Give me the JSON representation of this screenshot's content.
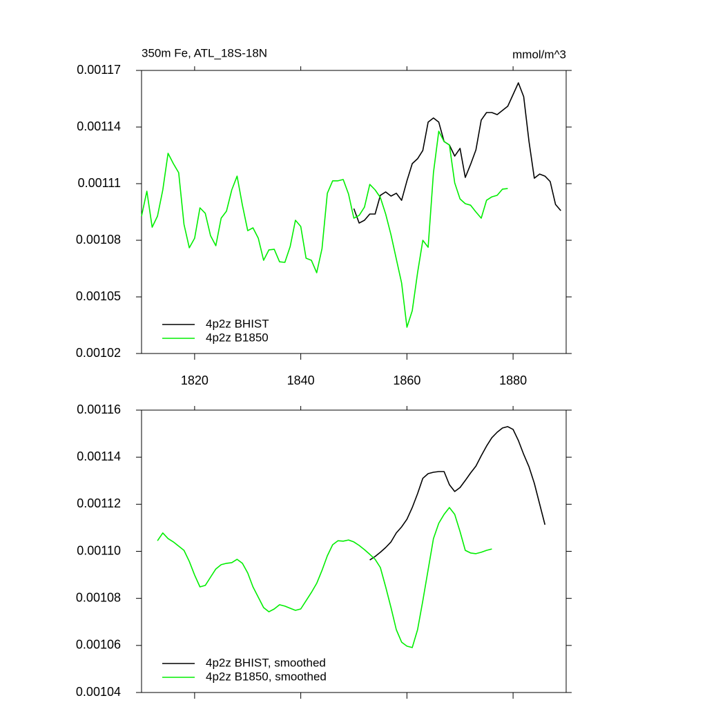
{
  "chart_data": [
    {
      "type": "line",
      "title": "350m Fe, ATL_18S-18N",
      "units_label": "mmol/m^3",
      "xlim": [
        1810,
        1890
      ],
      "xticks": [
        1820,
        1840,
        1860,
        1880
      ],
      "show_xtick_labels": true,
      "ylim": [
        0.00102,
        0.00117
      ],
      "yticks": [
        0.00102,
        0.00105,
        0.00108,
        0.00111,
        0.00114,
        0.00117
      ],
      "series": [
        {
          "name": "4p2z BHIST",
          "color": "#000000",
          "x": [
            1850,
            1851,
            1852,
            1853,
            1854,
            1855,
            1856,
            1857,
            1858,
            1859,
            1860,
            1861,
            1862,
            1863,
            1864,
            1865,
            1866,
            1867,
            1868,
            1869,
            1870,
            1871,
            1872,
            1873,
            1874,
            1875,
            1876,
            1877,
            1878,
            1879,
            1880,
            1881,
            1882,
            1883,
            1884,
            1885,
            1886,
            1887,
            1888,
            1889
          ],
          "values": [
            0.0010968,
            0.0010891,
            0.0010906,
            0.0010939,
            0.0010939,
            0.0011038,
            0.0011056,
            0.0011034,
            0.0011049,
            0.0011012,
            0.0011115,
            0.0011206,
            0.0011232,
            0.0011276,
            0.0011426,
            0.0011448,
            0.0011426,
            0.0011323,
            0.0011305,
            0.0011246,
            0.0011287,
            0.0011133,
            0.0011202,
            0.0011279,
            0.0011437,
            0.0011477,
            0.0011477,
            0.0011466,
            0.0011488,
            0.001151,
            0.0011572,
            0.0011634,
            0.0011561,
            0.0011323,
            0.0011129,
            0.0011151,
            0.001114,
            0.0011111,
            0.001099,
            0.0010957
          ]
        },
        {
          "name": "4p2z B1850",
          "color": "#00ee00",
          "x": [
            1810,
            1811,
            1812,
            1813,
            1814,
            1815,
            1816,
            1817,
            1818,
            1819,
            1820,
            1821,
            1822,
            1823,
            1824,
            1825,
            1826,
            1827,
            1828,
            1829,
            1830,
            1831,
            1832,
            1833,
            1834,
            1835,
            1836,
            1837,
            1838,
            1839,
            1840,
            1841,
            1842,
            1843,
            1844,
            1845,
            1846,
            1847,
            1848,
            1849,
            1850,
            1851,
            1852,
            1853,
            1854,
            1855,
            1856,
            1857,
            1858,
            1859,
            1860,
            1861,
            1862,
            1863,
            1864,
            1865,
            1866,
            1867,
            1868,
            1869,
            1870,
            1871,
            1872,
            1873,
            1874,
            1875,
            1876,
            1877,
            1878,
            1879
          ],
          "values": [
            0.0010928,
            0.001106,
            0.0010869,
            0.0010928,
            0.0011067,
            0.0011261,
            0.0011206,
            0.0011158,
            0.0010884,
            0.001076,
            0.0010811,
            0.0010972,
            0.0010943,
            0.0010825,
            0.0010771,
            0.0010917,
            0.0010954,
            0.0011067,
            0.001114,
            0.0010986,
            0.0010851,
            0.0010866,
            0.0010811,
            0.0010694,
            0.0010749,
            0.0010752,
            0.0010686,
            0.0010683,
            0.0010767,
            0.0010906,
            0.0010873,
            0.0010705,
            0.0010694,
            0.0010628,
            0.0010756,
            0.0011049,
            0.0011115,
            0.0011115,
            0.0011122,
            0.0011045,
            0.0010917,
            0.0010932,
            0.0010976,
            0.0011096,
            0.0011067,
            0.0011027,
            0.0010939,
            0.0010829,
            0.0010701,
            0.0010573,
            0.0010339,
            0.0010427,
            0.0010628,
            0.00108,
            0.0010763,
            0.0011158,
            0.0011378,
            0.0011323,
            0.0011305,
            0.0011104,
            0.0011019,
            0.0010994,
            0.0010986,
            0.001095,
            0.0010917,
            0.0011012,
            0.001103,
            0.0011038,
            0.0011071,
            0.0011074
          ]
        }
      ]
    },
    {
      "type": "line",
      "xlim": [
        1810,
        1890
      ],
      "xticks": [
        1820,
        1840,
        1860,
        1880
      ],
      "show_xtick_labels": false,
      "ylim": [
        0.00104,
        0.00116
      ],
      "yticks": [
        0.00104,
        0.00106,
        0.00108,
        {
          "value": 0.0011,
          "label": "0.00110"
        },
        0.00112,
        0.00114,
        0.00116
      ],
      "series": [
        {
          "name": "4p2z BHIST, smoothed",
          "color": "#000000",
          "x": [
            1853,
            1854,
            1855,
            1856,
            1857,
            1858,
            1859,
            1860,
            1861,
            1862,
            1863,
            1864,
            1865,
            1866,
            1867,
            1868,
            1869,
            1870,
            1871,
            1872,
            1873,
            1874,
            1875,
            1876,
            1877,
            1878,
            1879,
            1880,
            1881,
            1882,
            1883,
            1884,
            1885,
            1886
          ],
          "values": [
            0.0010963,
            0.0010978,
            0.0010996,
            0.0011016,
            0.001104,
            0.0011078,
            0.0011104,
            0.0011136,
            0.0011186,
            0.0011245,
            0.001131,
            0.001133,
            0.0011336,
            0.0011339,
            0.0011339,
            0.0011283,
            0.0011254,
            0.0011271,
            0.0011301,
            0.0011333,
            0.0011362,
            0.0011406,
            0.0011447,
            0.0011483,
            0.0011506,
            0.0011524,
            0.001153,
            0.0011518,
            0.0011471,
            0.0011412,
            0.0011359,
            0.0011289,
            0.0011201,
            0.0011113
          ]
        },
        {
          "name": "4p2z B1850, smoothed",
          "color": "#00ee00",
          "x": [
            1813,
            1814,
            1815,
            1816,
            1817,
            1818,
            1819,
            1820,
            1821,
            1822,
            1823,
            1824,
            1825,
            1826,
            1827,
            1828,
            1829,
            1830,
            1831,
            1832,
            1833,
            1834,
            1835,
            1836,
            1837,
            1838,
            1839,
            1840,
            1841,
            1842,
            1843,
            1844,
            1845,
            1846,
            1847,
            1848,
            1849,
            1850,
            1851,
            1852,
            1853,
            1854,
            1855,
            1856,
            1857,
            1858,
            1859,
            1860,
            1861,
            1862,
            1863,
            1864,
            1865,
            1866,
            1867,
            1868,
            1869,
            1870,
            1871,
            1872,
            1873,
            1874,
            1875,
            1876
          ],
          "values": [
            0.0011045,
            0.0011078,
            0.0011054,
            0.001104,
            0.0011022,
            0.0011004,
            0.0010957,
            0.0010899,
            0.0010849,
            0.0010855,
            0.001089,
            0.0010925,
            0.0010943,
            0.0010949,
            0.0010952,
            0.0010966,
            0.0010949,
            0.0010908,
            0.0010849,
            0.0010805,
            0.0010761,
            0.0010743,
            0.0010755,
            0.0010773,
            0.0010767,
            0.0010758,
            0.0010749,
            0.0010755,
            0.001079,
            0.0010825,
            0.0010864,
            0.0010919,
            0.0010981,
            0.0011028,
            0.0011045,
            0.0011043,
            0.0011048,
            0.001104,
            0.0011025,
            0.0011007,
            0.0010987,
            0.0010966,
            0.0010931,
            0.0010849,
            0.0010761,
            0.0010667,
            0.0010614,
            0.0010597,
            0.0010591,
            0.0010667,
            0.001079,
            0.0010922,
            0.0011054,
            0.0011119,
            0.0011157,
            0.0011186,
            0.0011157,
            0.0011084,
            0.0011004,
            0.0010993,
            0.001099,
            0.0010996,
            0.0011004,
            0.001101
          ]
        }
      ]
    }
  ]
}
